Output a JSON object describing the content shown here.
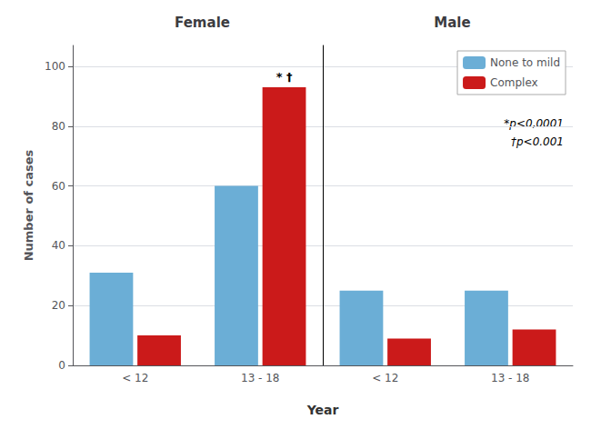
{
  "chart_data": [
    {
      "type": "bar",
      "title": "Female",
      "categories": [
        "< 12",
        "13 - 18"
      ],
      "series": [
        {
          "name": "None to mild",
          "color": "#6BAED6",
          "values": [
            31,
            60
          ]
        },
        {
          "name": "Complex",
          "color": "#CB1A1A",
          "values": [
            10,
            93
          ]
        }
      ],
      "ylabel": "Number of cases",
      "xlabel": "Year",
      "ylim": [
        0,
        107
      ],
      "yticks": [
        0,
        20,
        40,
        60,
        80,
        100
      ],
      "grid": true,
      "annotations": [
        {
          "text": "* †",
          "category": "13 - 18",
          "series": "Complex"
        }
      ]
    },
    {
      "type": "bar",
      "title": "Male",
      "categories": [
        "< 12",
        "13 - 18"
      ],
      "series": [
        {
          "name": "None to mild",
          "color": "#6BAED6",
          "values": [
            25,
            25
          ]
        },
        {
          "name": "Complex",
          "color": "#CB1A1A",
          "values": [
            9,
            12
          ]
        }
      ],
      "ylim": [
        0,
        107
      ],
      "yticks": [
        0,
        20,
        40,
        60,
        80,
        100
      ],
      "grid": true,
      "tick_labels": "x",
      "legend": "upper right",
      "annotations": [
        {
          "text": "*p<0,0001"
        },
        {
          "text": "†p<0.001"
        }
      ]
    }
  ]
}
